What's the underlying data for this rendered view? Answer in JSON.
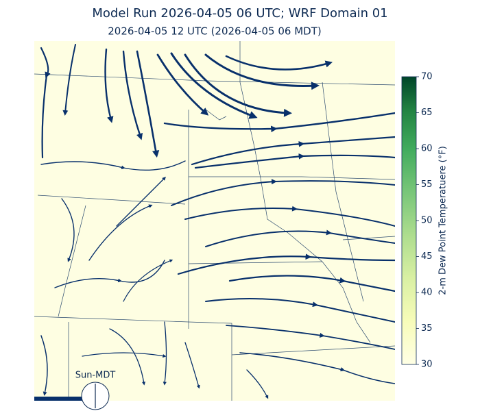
{
  "title": "Model Run 2026-04-05 06 UTC; WRF Domain 01",
  "subtitle": "2026-04-05 12 UTC  (2026-04-05 06 MDT)",
  "clock_label": "Sun-MDT",
  "colorbar": {
    "label": "2-m Dew Point Temperatuere (°F)",
    "lim": [
      30,
      70
    ],
    "ticks": [
      30,
      35,
      40,
      45,
      50,
      55,
      60,
      65,
      70
    ]
  }
}
